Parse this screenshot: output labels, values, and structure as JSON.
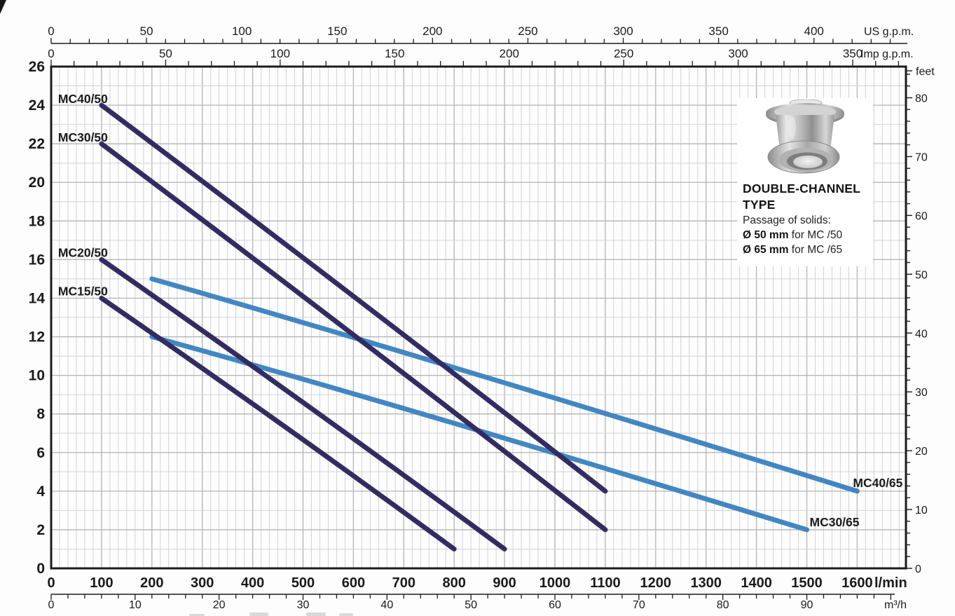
{
  "chart_data": {
    "type": "line",
    "title": "",
    "legend": "inline curve labels",
    "grid": {
      "visible": true,
      "vertical_minor_step_m3h": 1,
      "vertical_major_step_lmin": 100,
      "horizontal_minor_step_m": 1,
      "horizontal_major_step_m": 2
    },
    "axes": {
      "head_m": {
        "side": "left",
        "unit": "",
        "ylim": [
          0,
          26
        ],
        "labeled": [
          0,
          2,
          4,
          6,
          8,
          10,
          12,
          14,
          16,
          18,
          20,
          22,
          24,
          26
        ]
      },
      "head_ft": {
        "side": "right",
        "unit": "feet",
        "minor_step": 2,
        "minor_max": 84,
        "labeled": [
          0,
          10,
          20,
          30,
          40,
          50,
          60,
          70,
          80
        ]
      },
      "flow_lmin": {
        "side": "bottom",
        "unit": "l/min",
        "xlim": [
          0,
          1700
        ],
        "labeled": [
          0,
          100,
          200,
          300,
          400,
          500,
          600,
          700,
          800,
          900,
          1000,
          1100,
          1200,
          1300,
          1400,
          1500,
          1600
        ]
      },
      "flow_m3h": {
        "side": "bottom2",
        "unit": "m³/h",
        "minor_step": 2,
        "minor_max": 100,
        "labeled": [
          0,
          10,
          20,
          30,
          40,
          50,
          60,
          70,
          80,
          90
        ]
      },
      "flow_usgpm": {
        "side": "top",
        "unit": "US g.p.m.",
        "minor_step": 10,
        "minor_max": 440,
        "labeled": [
          0,
          50,
          100,
          150,
          200,
          250,
          300,
          350,
          400
        ]
      },
      "flow_impgpm": {
        "side": "top2",
        "unit": "Imp g.p.m.",
        "minor_step": 10,
        "minor_max": 370,
        "labeled": [
          0,
          50,
          100,
          150,
          200,
          250,
          300,
          350
        ]
      }
    },
    "series": [
      {
        "name": "MC40/50",
        "color": "#322c62",
        "paint_order": 1,
        "label_anchor": "start",
        "label_offset": [
          -62,
          -3
        ],
        "points": [
          [
            100,
            24
          ],
          [
            600,
            14.1
          ],
          [
            1100,
            4
          ]
        ]
      },
      {
        "name": "MC30/50",
        "color": "#322c62",
        "paint_order": 1,
        "label_anchor": "start",
        "label_offset": [
          -62,
          -3
        ],
        "points": [
          [
            100,
            22
          ],
          [
            600,
            12.1
          ],
          [
            1100,
            2
          ]
        ]
      },
      {
        "name": "MC20/50",
        "color": "#322c62",
        "paint_order": 1,
        "label_anchor": "start",
        "label_offset": [
          -62,
          -4
        ],
        "points": [
          [
            100,
            16
          ],
          [
            500,
            8.6
          ],
          [
            900,
            1
          ]
        ]
      },
      {
        "name": "MC15/50",
        "color": "#322c62",
        "paint_order": 1,
        "label_anchor": "start",
        "label_offset": [
          -62,
          -4
        ],
        "points": [
          [
            100,
            14
          ],
          [
            450,
            7.6
          ],
          [
            800,
            1
          ]
        ]
      },
      {
        "name": "MC40/65",
        "color": "#4287c2",
        "paint_order": 0,
        "label_anchor": "end",
        "label_offset": [
          -6,
          -6
        ],
        "points": [
          [
            200,
            15
          ],
          [
            800,
            10.4
          ],
          [
            1600,
            4
          ]
        ]
      },
      {
        "name": "MC30/65",
        "color": "#4287c2",
        "paint_order": 0,
        "label_anchor": "end",
        "label_offset": [
          4,
          -5
        ],
        "points": [
          [
            200,
            12
          ],
          [
            750,
            7.9
          ],
          [
            1500,
            2
          ]
        ]
      }
    ],
    "colors": {
      "curve_dark": "#322c62",
      "curve_blue": "#4287c2",
      "axis": "#1c1c1c",
      "grid_minor": "#d3d3d3",
      "grid_major": "#b3b3b3"
    }
  },
  "inset": {
    "title_line1": "DOUBLE-CHANNEL",
    "title_line2": "TYPE",
    "solids_label": "Passage of solids:",
    "size50_bold": "Ø 50 mm",
    "size50_rest": "for MC /50",
    "size65_bold": "Ø 65 mm",
    "size65_rest": "for MC /65"
  }
}
